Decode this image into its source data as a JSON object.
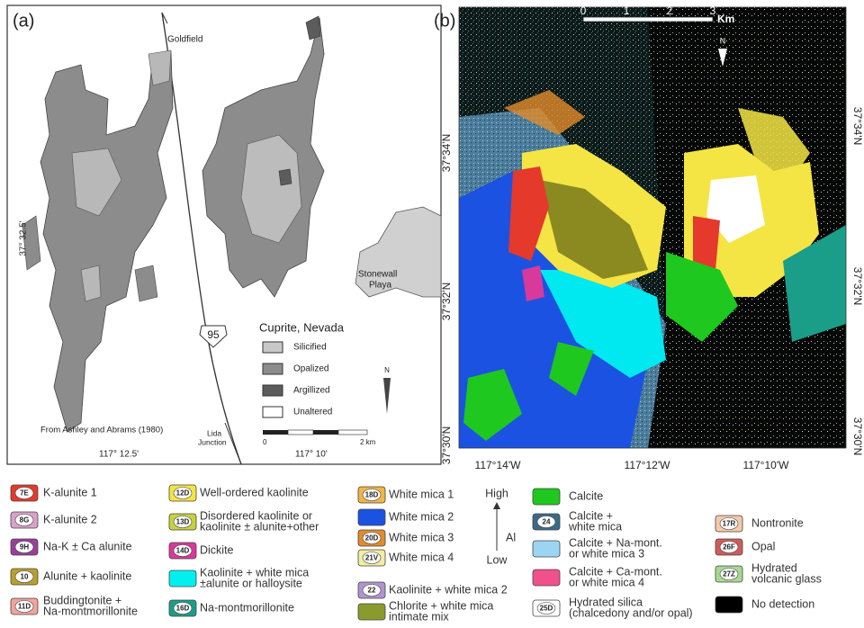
{
  "panel_a": {
    "label": "(a)",
    "north_arrow_label": "Goldfield",
    "lat_label": "37° 32.5'",
    "place_label": [
      "Stonewall",
      "Playa"
    ],
    "highway": "95",
    "legend": {
      "title": "Cuprite, Nevada",
      "items": [
        "Silicified",
        "Opalized",
        "Argillized",
        "Unaltered"
      ]
    },
    "north": "N",
    "source": "From Ashley and Abrams (1980)",
    "junction": [
      "Lida",
      "Junction"
    ],
    "lon_labels": [
      "117° 12.5'",
      "117° 10'"
    ],
    "scale": [
      "0",
      "2 km"
    ]
  },
  "panel_b": {
    "label": "(b)",
    "scale": [
      "0",
      "1",
      "2",
      "3",
      "Km"
    ],
    "north": "N",
    "lat_labels": [
      "37°34'N",
      "37°32'N",
      "37°30'N"
    ],
    "lon_labels": [
      "117°14'W",
      "117°12'W",
      "117°10'W"
    ]
  },
  "legend": {
    "al_scale": {
      "high": "High",
      "axis": "Al",
      "low": "Low"
    },
    "columns": [
      [
        {
          "code": "7E",
          "label": [
            "K-alunite 1"
          ],
          "color": "#e5392b"
        },
        {
          "code": "8G",
          "label": [
            "K-alunite 2"
          ],
          "color": "#d8a2c9"
        },
        {
          "code": "9H",
          "label": [
            "Na-K ± Ca alunite"
          ],
          "color": "#9a3e9b"
        },
        {
          "code": "10",
          "label": [
            "Alunite + kaolinite"
          ],
          "color": "#b9a02a"
        },
        {
          "code": "11D",
          "label": [
            "Buddingtonite +",
            "Na-montmorillonite"
          ],
          "color": "#f2a3a0"
        }
      ],
      [
        {
          "code": "12D",
          "label": [
            "Well-ordered kaolinite"
          ],
          "color": "#f4e544"
        },
        {
          "code": "13D",
          "label": [
            "Disordered kaolinite or",
            "kaolinite ± alunite+other"
          ],
          "color": "#c8d23c"
        },
        {
          "code": "14D",
          "label": [
            "Dickite"
          ],
          "color": "#d8399a"
        },
        {
          "label": [
            "Kaolinite  + white mica",
            "±alunite or halloysite"
          ],
          "color": "#00f0f0"
        },
        {
          "code": "16D",
          "label": [
            "Na-montmorillonite"
          ],
          "color": "#1a9e8a"
        }
      ],
      [
        {
          "code": "18D",
          "label": [
            "White mica 1"
          ],
          "color": "#f0b545"
        },
        {
          "label": [
            "White mica 2"
          ],
          "color": "#1c52e2"
        },
        {
          "code": "20D",
          "label": [
            "White mica 3"
          ],
          "color": "#e38b2b"
        },
        {
          "code": "21V",
          "label": [
            "White mica 4"
          ],
          "color": "#f1eda2"
        },
        {
          "code": "22",
          "label": [
            "Kaolinite + white mica 2"
          ],
          "color": "#b193d2"
        },
        {
          "label": [
            "Chlorite + white mica",
            "intimate mix"
          ],
          "color": "#8b9a2c"
        }
      ],
      [
        {
          "label": [
            "Calcite"
          ],
          "color": "#1ec81e"
        },
        {
          "code": "24",
          "label": [
            "Calcite +",
            "white mica"
          ],
          "color": "#3a6a8a"
        },
        {
          "label": [
            "Calcite + Na-mont.",
            "or white mica 3"
          ],
          "color": "#9bd5f1"
        },
        {
          "label": [
            "Calcite + Ca-mont.",
            "or white mica 4"
          ],
          "color": "#f0518b"
        },
        {
          "code": "25D",
          "label": [
            "Hydrated silica",
            "(chalcedony and/or opal)"
          ],
          "color": "#ffffff"
        }
      ],
      [
        {
          "code": "17R",
          "label": [
            "Nontronite"
          ],
          "color": "#f6c9a9"
        },
        {
          "code": "26F",
          "label": [
            "Opal"
          ],
          "color": "#d05b5b"
        },
        {
          "code": "27Z",
          "label": [
            "Hydrated",
            "volcanic glass"
          ],
          "color": "#a9d991"
        },
        {
          "label": [
            "No detection"
          ],
          "color": "#000000"
        }
      ]
    ]
  }
}
